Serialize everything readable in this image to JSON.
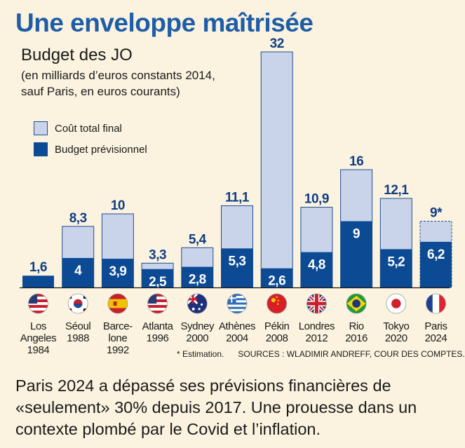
{
  "headline": "Une enveloppe maîtrisée",
  "subtitle": "Budget des JO",
  "subnote_line1": "(en milliards d’euros constants 2014,",
  "subnote_line2": "sauf Paris, en euros courants)",
  "colors": {
    "final": "#c9d3ea",
    "final_border": "#1f4e91",
    "budget": "#0c4a94",
    "headline": "#1e5da8",
    "background": "#fbf3df"
  },
  "legend": [
    {
      "key": "final",
      "label": "Coût total final"
    },
    {
      "key": "budget",
      "label": "Budget prévisionnel"
    }
  ],
  "footnote_estimation": "* Estimation.",
  "footnote_sources": "SOURCES : WLADIMIR ANDREFF, COUR DES COMPTES.",
  "caption": "Paris 2024 a dépassé ses prévisions financières de «seulement» 30% depuis 2017. Une prouesse dans un contexte plombé par le Covid et l’inflation.",
  "chart_data": {
    "type": "bar",
    "title": "Budget des JO",
    "subtitle": "(en milliards d’euros constants 2014, sauf Paris, en euros courants)",
    "ylim": [
      0,
      32
    ],
    "grid": false,
    "legend_position": "top-left",
    "categories": [
      {
        "lines": [
          "Los",
          "Angeles",
          "1984"
        ],
        "flag": "us-flag-icon"
      },
      {
        "lines": [
          "Séoul",
          "1988"
        ],
        "flag": "south-korea-flag-icon"
      },
      {
        "lines": [
          "Barce-",
          "lone",
          "1992"
        ],
        "flag": "spain-flag-icon"
      },
      {
        "lines": [
          "Atlanta",
          "1996"
        ],
        "flag": "us-flag-icon"
      },
      {
        "lines": [
          "Sydney",
          "2000"
        ],
        "flag": "australia-flag-icon"
      },
      {
        "lines": [
          "Athènes",
          "2004"
        ],
        "flag": "greece-flag-icon"
      },
      {
        "lines": [
          "Pékin",
          "2008"
        ],
        "flag": "china-flag-icon"
      },
      {
        "lines": [
          "Londres",
          "2012"
        ],
        "flag": "uk-flag-icon"
      },
      {
        "lines": [
          "Rio",
          "2016"
        ],
        "flag": "brazil-flag-icon"
      },
      {
        "lines": [
          "Tokyo",
          "2020"
        ],
        "flag": "japan-flag-icon"
      },
      {
        "lines": [
          "Paris",
          "2024"
        ],
        "flag": "france-flag-icon"
      }
    ],
    "series": [
      {
        "name": "Coût total final",
        "values": [
          1.6,
          8.3,
          10,
          3.3,
          5.4,
          11.1,
          32,
          10.9,
          16,
          12.1,
          9
        ],
        "labels": [
          "1,6",
          "8,3",
          "10",
          "3,3",
          "5,4",
          "11,1",
          "32",
          "10,9",
          "16",
          "12,1",
          "9*"
        ],
        "estimated": [
          false,
          false,
          false,
          false,
          false,
          false,
          false,
          false,
          false,
          false,
          true
        ]
      },
      {
        "name": "Budget prévisionnel",
        "values": [
          1.6,
          4,
          3.9,
          2.5,
          2.8,
          5.3,
          2.6,
          4.8,
          9,
          5.2,
          6.2
        ],
        "labels": [
          "",
          "4",
          "3,9",
          "2,5",
          "2,8",
          "5,3",
          "2,6",
          "4,8",
          "9",
          "5,2",
          "6,2"
        ]
      }
    ]
  }
}
